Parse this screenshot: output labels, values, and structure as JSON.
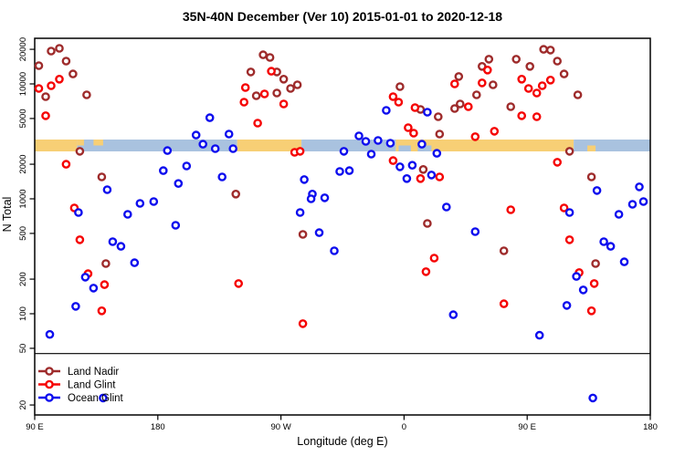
{
  "title": "35N-40N December (Ver 10)   2015-01-01 to 2020-12-18",
  "chart_data": {
    "type": "scatter",
    "title": "35N-40N December (Ver 10)   2015-01-01 to 2020-12-18",
    "xlabel": "Longitude (deg E)",
    "ylabel": "N Total",
    "y_scale": "log",
    "x_axis_note": "Longitude axis wraps eastward from 90E around the globe to 180 again (unwrapped domain 90..540 deg E)",
    "x_ticks": [
      {
        "label": "90 E",
        "lon": 90
      },
      {
        "label": "180",
        "lon": 180
      },
      {
        "label": "90 W",
        "lon": 270
      },
      {
        "label": "0",
        "lon": 360
      },
      {
        "label": "90 E",
        "lon": 450
      },
      {
        "label": "180",
        "lon": 540
      }
    ],
    "y_ticks": [
      20000,
      10000,
      5000,
      2000,
      1000,
      500,
      200,
      100,
      50,
      20
    ],
    "ylim": [
      16,
      25000
    ],
    "axis_break": {
      "break_N": 45,
      "note": "horizontal break line across plot; region below holds N≈20 points and legend"
    },
    "legend": [
      {
        "name": "Land Nadir",
        "color": "#9E2B2B"
      },
      {
        "name": "Land Glint",
        "color": "#F50000"
      },
      {
        "name": "Ocean Glint",
        "color": "#0D0DEE"
      }
    ],
    "colors": {
      "land_nadir": "#9E2B2B",
      "land_glint": "#F50000",
      "ocean_glint": "#0D0DEE",
      "map_land": "#F7CF75",
      "map_ocean": "#A9C2DF",
      "axis": "#000000"
    },
    "map_strip": {
      "note": "world-map band (35N-40N latitude strip): land=tan, ocean=blue, drawn at N≈2600-3300",
      "y_N_range": [
        2600,
        3300
      ],
      "segments": [
        {
          "lon1": 90,
          "lon2": 121,
          "type": "land"
        },
        {
          "lon1": 121,
          "lon2": 238,
          "type": "ocean"
        },
        {
          "lon1": 238,
          "lon2": 285,
          "type": "land"
        },
        {
          "lon1": 285,
          "lon2": 354,
          "type": "ocean"
        },
        {
          "lon1": 354,
          "lon2": 484,
          "type": "land"
        },
        {
          "lon1": 484,
          "lon2": 540,
          "type": "ocean"
        }
      ],
      "patches": [
        {
          "lon1": 121,
          "lon2": 126,
          "type": "land",
          "part": "top"
        },
        {
          "lon1": 133,
          "lon2": 140,
          "type": "land",
          "part": "top"
        },
        {
          "lon1": 356,
          "lon2": 365,
          "type": "ocean",
          "part": "bottom"
        },
        {
          "lon1": 370,
          "lon2": 380,
          "type": "ocean",
          "part": "bottom"
        },
        {
          "lon1": 494,
          "lon2": 500,
          "type": "land",
          "part": "bottom"
        }
      ]
    },
    "series": [
      {
        "name": "Land Nadir",
        "color": "#9E2B2B",
        "points": [
          [
            102,
            19300
          ],
          [
            108,
            20400
          ],
          [
            93,
            14400
          ],
          [
            113,
            15800
          ],
          [
            118,
            12200
          ],
          [
            98,
            7740
          ],
          [
            128,
            8030
          ],
          [
            123,
            2590
          ],
          [
            139,
            1550
          ],
          [
            142,
            273
          ],
          [
            237,
            1100
          ],
          [
            248,
            12700
          ],
          [
            252,
            7890
          ],
          [
            257,
            17900
          ],
          [
            262,
            17000
          ],
          [
            267,
            12700
          ],
          [
            267,
            8330
          ],
          [
            272,
            11000
          ],
          [
            277,
            9120
          ],
          [
            282,
            9820
          ],
          [
            286,
            490
          ],
          [
            357,
            9470
          ],
          [
            372,
            5990
          ],
          [
            374,
            1800
          ],
          [
            377,
            611
          ],
          [
            385,
            5180
          ],
          [
            386,
            3660
          ],
          [
            397,
            6100
          ],
          [
            400,
            11600
          ],
          [
            401,
            6690
          ],
          [
            413,
            8030
          ],
          [
            417,
            14200
          ],
          [
            422,
            16400
          ],
          [
            425,
            9820
          ],
          [
            433,
            353
          ],
          [
            438,
            6330
          ],
          [
            442,
            16400
          ],
          [
            452,
            14200
          ],
          [
            462,
            20000
          ],
          [
            467,
            19700
          ],
          [
            472,
            15800
          ],
          [
            477,
            12200
          ],
          [
            481,
            2590
          ],
          [
            487,
            8030
          ],
          [
            497,
            1550
          ],
          [
            500,
            273
          ]
        ]
      },
      {
        "name": "Land Glint",
        "color": "#F50000",
        "points": [
          [
            93,
            9120
          ],
          [
            102,
            9640
          ],
          [
            108,
            11000
          ],
          [
            98,
            5280
          ],
          [
            113,
            2000
          ],
          [
            119,
            833
          ],
          [
            123,
            440
          ],
          [
            129,
            223
          ],
          [
            141,
            179
          ],
          [
            139,
            106
          ],
          [
            243,
            6940
          ],
          [
            244,
            9290
          ],
          [
            253,
            4560
          ],
          [
            258,
            8180
          ],
          [
            263,
            12900
          ],
          [
            272,
            6690
          ],
          [
            280,
            2540
          ],
          [
            284,
            2590
          ],
          [
            239,
            183
          ],
          [
            286,
            82
          ],
          [
            352,
            7740
          ],
          [
            356,
            6940
          ],
          [
            368,
            6220
          ],
          [
            363,
            4160
          ],
          [
            367,
            3730
          ],
          [
            352,
            2150
          ],
          [
            372,
            1500
          ],
          [
            386,
            1550
          ],
          [
            376,
            232
          ],
          [
            382,
            305
          ],
          [
            397,
            10000
          ],
          [
            407,
            6330
          ],
          [
            412,
            3470
          ],
          [
            417,
            10200
          ],
          [
            421,
            13200
          ],
          [
            426,
            3870
          ],
          [
            433,
            122
          ],
          [
            438,
            803
          ],
          [
            446,
            11000
          ],
          [
            446,
            5280
          ],
          [
            451,
            9120
          ],
          [
            457,
            8330
          ],
          [
            457,
            5180
          ],
          [
            461,
            9640
          ],
          [
            467,
            10800
          ],
          [
            472,
            2080
          ],
          [
            477,
            833
          ],
          [
            481,
            440
          ],
          [
            488,
            228
          ],
          [
            497,
            106
          ],
          [
            499,
            183
          ]
        ]
      },
      {
        "name": "Ocean Glint",
        "color": "#0D0DEE",
        "points": [
          [
            143,
            1200
          ],
          [
            187,
            2630
          ],
          [
            184,
            1760
          ],
          [
            195,
            1360
          ],
          [
            201,
            1930
          ],
          [
            208,
            3590
          ],
          [
            213,
            2990
          ],
          [
            218,
            5080
          ],
          [
            222,
            2730
          ],
          [
            227,
            1550
          ],
          [
            232,
            3660
          ],
          [
            235,
            2730
          ],
          [
            316,
            2590
          ],
          [
            313,
            1730
          ],
          [
            320,
            1760
          ],
          [
            287,
            1470
          ],
          [
            293,
            1100
          ],
          [
            327,
            3530
          ],
          [
            332,
            3160
          ],
          [
            336,
            2450
          ],
          [
            341,
            3220
          ],
          [
            347,
            5890
          ],
          [
            350,
            3050
          ],
          [
            357,
            1900
          ],
          [
            362,
            1500
          ],
          [
            366,
            1960
          ],
          [
            373,
            2990
          ],
          [
            377,
            5680
          ],
          [
            380,
            1610
          ],
          [
            384,
            2490
          ],
          [
            501,
            1180
          ],
          [
            532,
            1270
          ],
          [
            122,
            760
          ],
          [
            167,
            912
          ],
          [
            177,
            947
          ],
          [
            158,
            733
          ],
          [
            193,
            589
          ],
          [
            147,
            424
          ],
          [
            153,
            386
          ],
          [
            163,
            278
          ],
          [
            127,
            208
          ],
          [
            133,
            167
          ],
          [
            120,
            116
          ],
          [
            101,
            66
          ],
          [
            292,
            1000
          ],
          [
            302,
            1020
          ],
          [
            284,
            760
          ],
          [
            298,
            508
          ],
          [
            309,
            353
          ],
          [
            391,
            849
          ],
          [
            412,
            518
          ],
          [
            481,
            760
          ],
          [
            506,
            424
          ],
          [
            511,
            386
          ],
          [
            517,
            733
          ],
          [
            521,
            283
          ],
          [
            527,
            896
          ],
          [
            535,
            947
          ],
          [
            486,
            211
          ],
          [
            491,
            161
          ],
          [
            479,
            118
          ],
          [
            396,
            98
          ],
          [
            459,
            65
          ],
          [
            140,
            23
          ],
          [
            498,
            23
          ]
        ]
      }
    ]
  }
}
